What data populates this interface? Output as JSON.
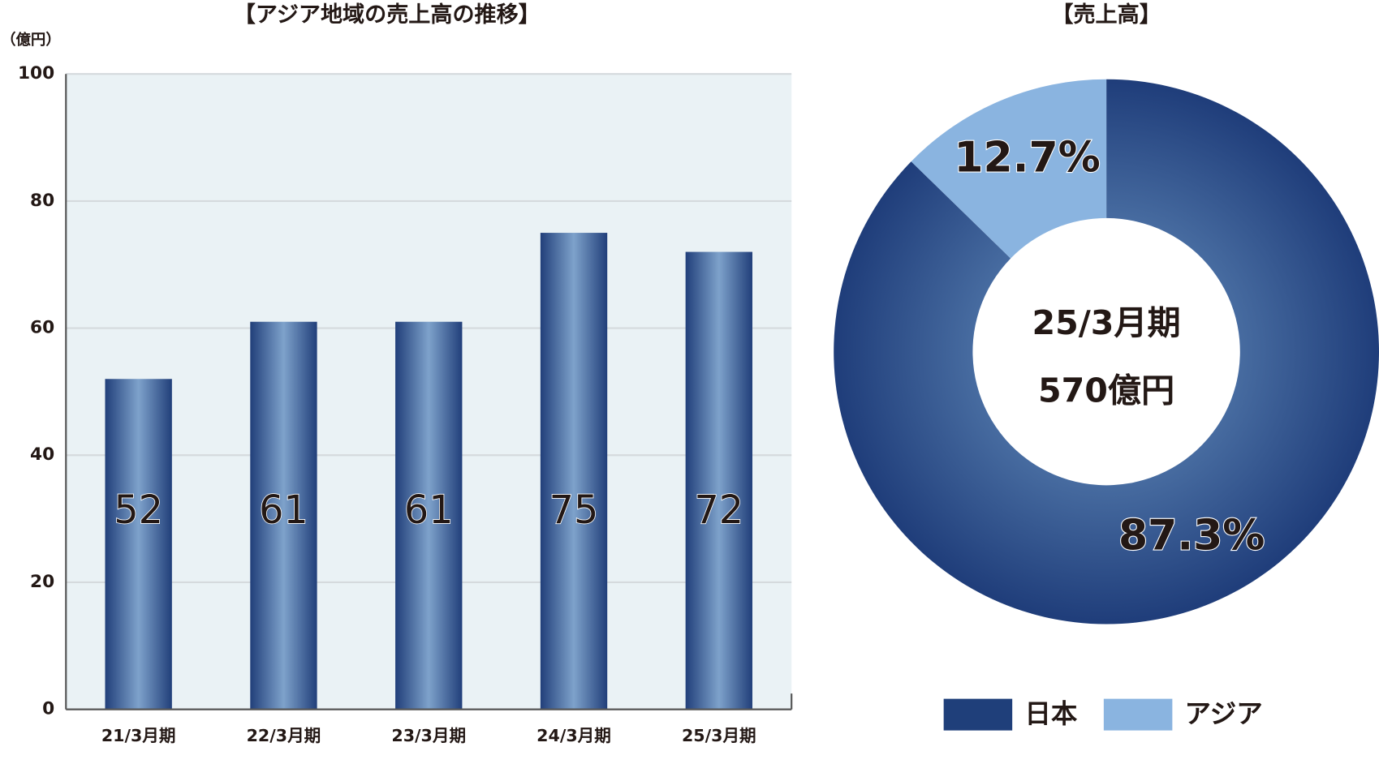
{
  "chart_data": [
    {
      "type": "bar",
      "title": "【アジア地域の売上高の推移】",
      "y_label": "（億円）",
      "categories": [
        "21/3月期",
        "22/3月期",
        "23/3月期",
        "24/3月期",
        "25/3月期"
      ],
      "values": [
        52,
        61,
        61,
        75,
        72
      ],
      "ylim": [
        0,
        100
      ],
      "yticks": [
        0,
        20,
        40,
        60,
        80,
        100
      ],
      "grid": true
    },
    {
      "type": "pie",
      "title": "【売上高】",
      "categories": [
        "日本",
        "アジア"
      ],
      "values": [
        87.3,
        12.7
      ],
      "value_labels": [
        "87.3%",
        "12.7%"
      ],
      "colors": [
        "#1f3f7a",
        "#8ab4e0"
      ],
      "center_label": [
        "25/3月期",
        "570億円"
      ],
      "legend": "bottom"
    }
  ]
}
